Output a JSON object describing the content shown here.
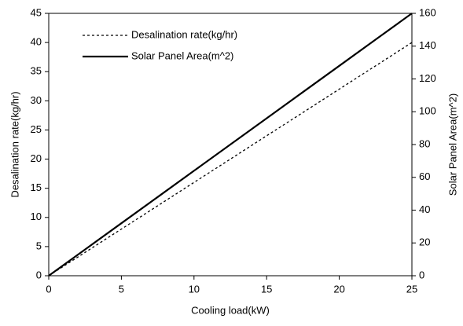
{
  "chart_data": {
    "type": "line",
    "x_label": "Cooling load(kW)",
    "y_label": "Desalination rate(kg/hr)",
    "y2_label": "Solar Panel Area(m^2)",
    "x": [
      0,
      2.5,
      5,
      7.5,
      10,
      12.5,
      15,
      17.5,
      20,
      22.5,
      25
    ],
    "series": [
      {
        "name": "Desalination rate(kg/hr)",
        "color": "#000000",
        "dash": "dotted",
        "values": [
          0,
          4,
          8,
          12,
          16,
          20,
          24,
          28,
          32,
          36,
          40
        ]
      },
      {
        "name": "Solar Panel Area(m^2)",
        "color": "#000000",
        "dash": "solid",
        "axis": "y2",
        "values": [
          0,
          16,
          32,
          48,
          64,
          80,
          96,
          112,
          128,
          144,
          160
        ]
      }
    ],
    "xlim": [
      0,
      25
    ],
    "xticks": [
      0,
      5,
      10,
      15,
      20,
      25
    ],
    "ylim": [
      0,
      45
    ],
    "yticks": [
      0,
      5,
      10,
      15,
      20,
      25,
      30,
      35,
      40,
      45
    ],
    "y2lim": [
      0,
      160
    ],
    "y2ticks": [
      0,
      20,
      40,
      60,
      80,
      100,
      120,
      140,
      160
    ],
    "grid": false,
    "legend": "upper-left"
  }
}
